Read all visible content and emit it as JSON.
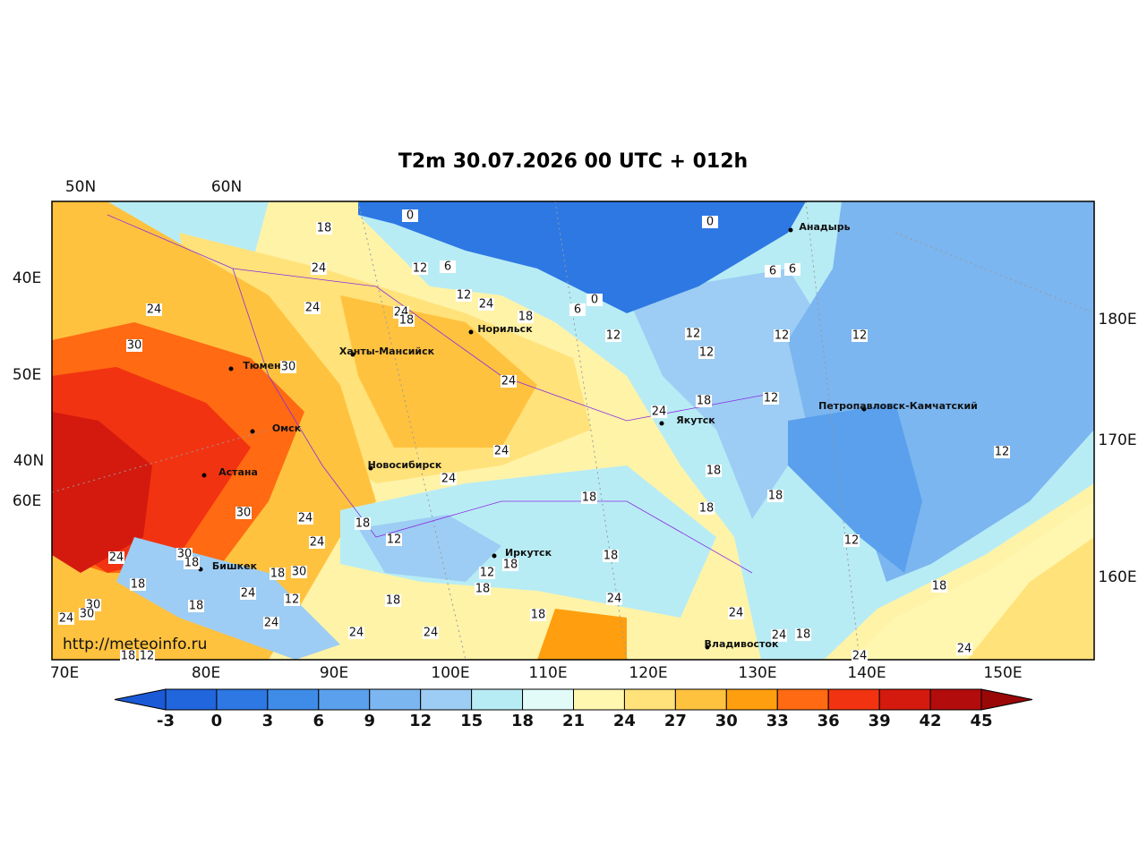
{
  "title": "T2m 30.07.2026 00 UTC + 012h",
  "watermark": "http://meteoinfo.ru",
  "lon_labels": [
    "70E",
    "80E",
    "90E",
    "100E",
    "110E",
    "120E",
    "130E",
    "140E",
    "150E"
  ],
  "left_labels": [
    "50N",
    "60N",
    "40E",
    "50E",
    "40N",
    "60E"
  ],
  "right_labels": [
    "180E",
    "170E",
    "160E"
  ],
  "cities": [
    "Анадырь",
    "Норильск",
    "Ханты-Мансийск",
    "Тюмень",
    "Омск",
    "Якутск",
    "Петропавловск-Камчатский",
    "Астана",
    "Новосибирск",
    "Иркутск",
    "Бишкек",
    "Владивосток"
  ],
  "contour_labels": [
    18,
    0,
    24,
    12,
    6,
    12,
    24,
    24,
    24,
    24,
    18,
    18,
    6,
    0,
    0,
    6,
    6,
    12,
    12,
    12,
    12,
    12,
    30,
    30,
    24,
    18,
    12,
    24,
    24,
    24,
    12,
    18,
    18,
    18,
    18,
    30,
    24,
    18,
    24,
    12,
    12,
    30,
    24,
    18,
    18,
    30,
    18,
    18,
    12,
    18,
    18,
    18,
    24,
    12,
    18,
    24,
    30,
    18,
    30,
    24,
    24,
    18,
    24,
    24,
    24,
    24,
    18,
    24,
    24,
    18,
    12
  ],
  "colorbar": {
    "ticks": [
      -3,
      0,
      3,
      6,
      9,
      12,
      15,
      18,
      21,
      24,
      27,
      30,
      33,
      36,
      39,
      42,
      45
    ],
    "colors": [
      "#1a5ad6",
      "#2166dd",
      "#2d78e3",
      "#3f8ce8",
      "#5aa0ec",
      "#7bb6f0",
      "#9dcdf4",
      "#b8ecf5",
      "#e2fbf9",
      "#fff7b0",
      "#ffe27a",
      "#ffc23f",
      "#ff9e0e",
      "#ff6a12",
      "#f23311",
      "#d41a0e",
      "#b30c0c",
      "#9a0707"
    ]
  }
}
